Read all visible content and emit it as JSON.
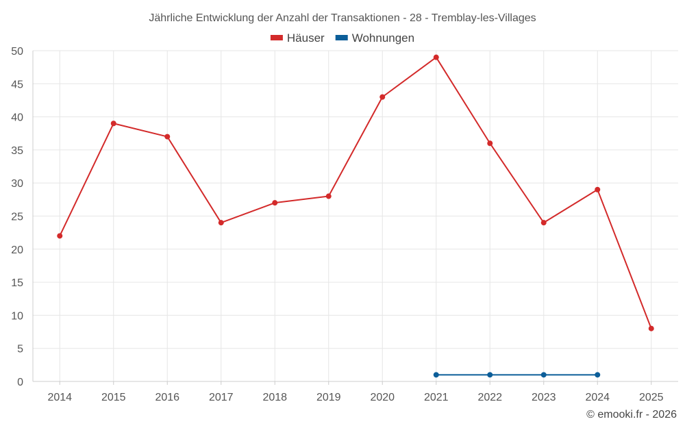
{
  "chart_data": {
    "type": "line",
    "title": "Jährliche Entwicklung der Anzahl der Transaktionen - 28 - Tremblay-les-Villages",
    "xlabel": "",
    "ylabel": "",
    "categories": [
      "2014",
      "2015",
      "2016",
      "2017",
      "2018",
      "2019",
      "2020",
      "2021",
      "2022",
      "2023",
      "2024",
      "2025"
    ],
    "ylim": [
      0,
      50
    ],
    "yticks": [
      0,
      5,
      10,
      15,
      20,
      25,
      30,
      35,
      40,
      45,
      50
    ],
    "grid": true,
    "legend_position": "top-center",
    "series": [
      {
        "name": "Häuser",
        "color": "#d32a2a",
        "values": [
          22,
          39,
          37,
          24,
          27,
          28,
          43,
          49,
          36,
          24,
          29,
          8
        ]
      },
      {
        "name": "Wohnungen",
        "color": "#0c5e99",
        "values": [
          null,
          null,
          null,
          null,
          null,
          null,
          null,
          1,
          1,
          1,
          1,
          null
        ]
      }
    ]
  },
  "credit": "© emooki.fr - 2026"
}
